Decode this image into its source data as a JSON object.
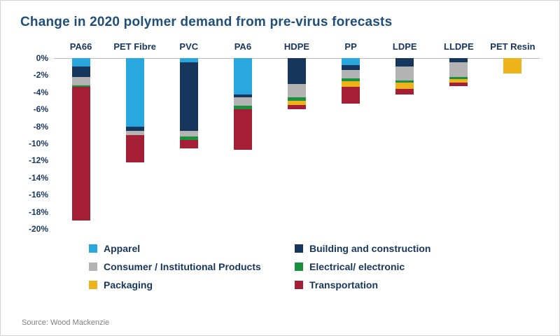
{
  "title": "Change in 2020 polymer demand from pre-virus forecasts",
  "source": "Source: Wood Mackenzie",
  "colors": {
    "title_text": "#1F4E79",
    "axis_text": "#17365D",
    "zero_line": "#B9B9B9"
  },
  "chart_data": {
    "type": "bar",
    "stacked": true,
    "title": "Change in 2020 polymer demand from pre-virus forecasts",
    "xlabel": "",
    "ylabel": "",
    "ylim": [
      -20,
      0
    ],
    "grid": false,
    "legend_position": "bottom",
    "y_ticks": [
      "0%",
      "-2%",
      "-4%",
      "-6%",
      "-8%",
      "-10%",
      "-12%",
      "-14%",
      "-16%",
      "-18%",
      "-20%"
    ],
    "y_tick_step_pct": 2,
    "categories": [
      "PA66",
      "PET Fibre",
      "PVC",
      "PA6",
      "HDPE",
      "PP",
      "LDPE",
      "LLDPE",
      "PET Resin"
    ],
    "series": [
      {
        "name": "Apparel",
        "color": "#29A8E0",
        "values": [
          -1.0,
          -8.0,
          -0.5,
          -4.3,
          0,
          -0.8,
          0,
          0,
          0
        ]
      },
      {
        "name": "Building and construction",
        "color": "#17365D",
        "values": [
          -1.2,
          -0.5,
          -8.0,
          -0.3,
          -3.0,
          -0.6,
          -1.0,
          -0.5,
          0
        ]
      },
      {
        "name": "Consumer / Institutional Products",
        "color": "#B3B3B3",
        "values": [
          -1.0,
          -0.5,
          -0.7,
          -1.0,
          -1.6,
          -1.0,
          -1.6,
          -1.7,
          0
        ]
      },
      {
        "name": "Electrical/ electronic",
        "color": "#18913E",
        "values": [
          -0.2,
          0,
          -0.4,
          -0.4,
          -0.4,
          -0.3,
          -0.3,
          -0.3,
          0
        ]
      },
      {
        "name": "Packaging",
        "color": "#EEB21B",
        "values": [
          0,
          0,
          0,
          0,
          -0.5,
          -0.7,
          -0.7,
          -0.4,
          -1.8
        ]
      },
      {
        "name": "Transportation",
        "color": "#A41E35",
        "values": [
          -15.6,
          -3.2,
          -1.0,
          -4.7,
          -0.5,
          -1.9,
          -0.7,
          -0.4,
          0
        ]
      }
    ],
    "totals_pct": [
      -19.0,
      -12.2,
      -10.6,
      -10.7,
      -6.0,
      -5.3,
      -4.3,
      -3.3,
      -1.8
    ]
  }
}
